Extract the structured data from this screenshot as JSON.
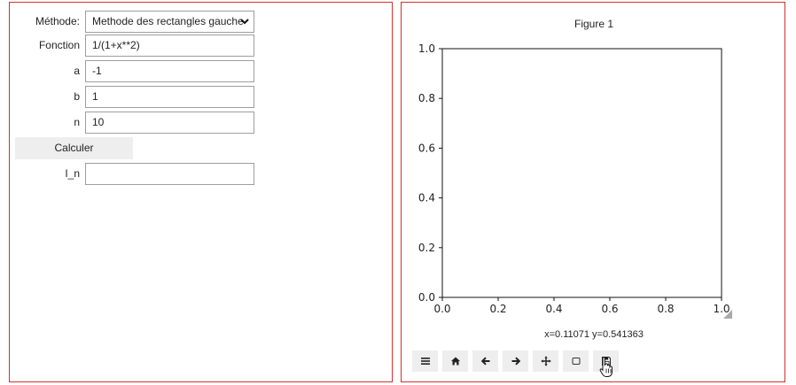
{
  "form": {
    "methode_label": "Méthode:",
    "methode_value": "Methode des rectangles gauche",
    "fonction_label": "Fonction",
    "fonction_value": "1/(1+x**2)",
    "a_label": "a",
    "a_value": "-1",
    "b_label": "b",
    "b_value": "1",
    "n_label": "n",
    "n_value": "10",
    "calculer_label": "Calculer",
    "in_label": "I_n",
    "in_value": ""
  },
  "figure": {
    "title": "Figure 1",
    "coords": "x=0.11071 y=0.541363"
  },
  "chart_data": {
    "type": "line",
    "title": "",
    "xlabel": "",
    "ylabel": "",
    "xlim": [
      0.0,
      1.0
    ],
    "ylim": [
      0.0,
      1.0
    ],
    "xticks": [
      "0.0",
      "0.2",
      "0.4",
      "0.6",
      "0.8",
      "1.0"
    ],
    "yticks": [
      "0.0",
      "0.2",
      "0.4",
      "0.6",
      "0.8",
      "1.0"
    ],
    "series": [],
    "grid": false
  },
  "toolbar": {
    "icons": [
      "menu-icon",
      "home-icon",
      "back-arrow-icon",
      "forward-arrow-icon",
      "pan-icon",
      "zoom-rect-icon",
      "save-icon"
    ]
  },
  "colors": {
    "panel_border": "#d32f2f",
    "button_bg": "#eeeeee"
  }
}
